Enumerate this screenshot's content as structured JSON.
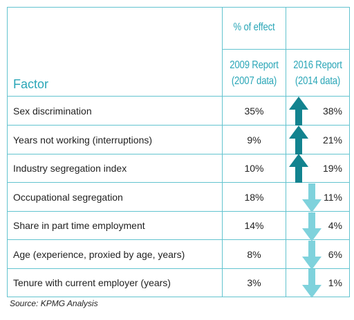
{
  "chart_data": {
    "type": "table",
    "header": {
      "factor_label": "Factor",
      "group_label": "% of effect",
      "col2009_line1": "2009 Report",
      "col2009_line2": "(2007 data)",
      "col2016_line1": "2016 Report",
      "col2016_line2": "(2014 data)"
    },
    "rows": [
      {
        "factor": "Sex discrimination",
        "v2009": "35%",
        "v2016": "38%",
        "trend": "up"
      },
      {
        "factor": "Years not working (interruptions)",
        "v2009": "9%",
        "v2016": "21%",
        "trend": "up"
      },
      {
        "factor": "Industry segregation index",
        "v2009": "10%",
        "v2016": "19%",
        "trend": "up"
      },
      {
        "factor": "Occupational segregation",
        "v2009": "18%",
        "v2016": "11%",
        "trend": "down"
      },
      {
        "factor": "Share in part time employment",
        "v2009": "14%",
        "v2016": "4%",
        "trend": "down"
      },
      {
        "factor": "Age (experience, proxied by age, years)",
        "v2009": "8%",
        "v2016": "6%",
        "trend": "down"
      },
      {
        "factor": "Tenure with current employer (years)",
        "v2009": "3%",
        "v2016": "1%",
        "trend": "down"
      }
    ],
    "source": "Source: KPMG Analysis"
  },
  "colors": {
    "border": "#62c3cf",
    "header_text": "#2aa6b7",
    "arrow_up": "#12838f",
    "arrow_down": "#7fd2dc"
  }
}
